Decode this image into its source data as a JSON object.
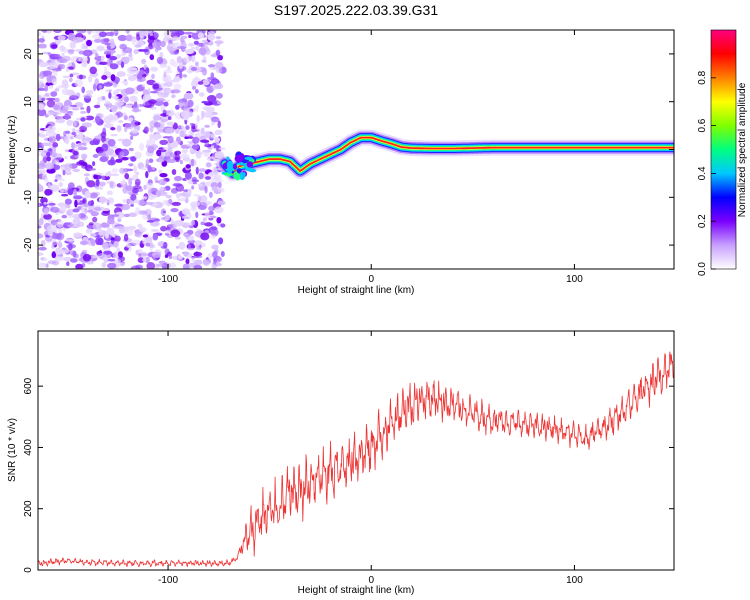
{
  "title": "S197.2025.222.03.39.G31",
  "chart_data": [
    {
      "type": "heatmap",
      "name": "spectrogram",
      "xlabel": "Height of straight line (km)",
      "ylabel": "Frequency (Hz)",
      "xlim": [
        -164,
        149
      ],
      "ylim": [
        -25,
        25
      ],
      "x_ticks": [
        -100,
        0,
        100
      ],
      "x_tick_labels": [
        "-100",
        "0",
        "100"
      ],
      "y_ticks": [
        20,
        10,
        0,
        -10,
        -20
      ],
      "y_tick_labels": [
        "20",
        "10",
        "0",
        "-10",
        "-20"
      ],
      "noise_region_x": [
        -164,
        -73
      ],
      "signal_trace": {
        "x": [
          -72,
          -68,
          -65,
          -60,
          -55,
          -50,
          -45,
          -40,
          -35,
          -30,
          -25,
          -20,
          -15,
          -10,
          -5,
          0,
          5,
          10,
          15,
          20,
          30,
          40,
          50,
          60,
          80,
          100,
          120,
          149
        ],
        "y": [
          -3.0,
          -5.0,
          -3.5,
          -3.0,
          -2.5,
          -2.0,
          -2.0,
          -2.5,
          -4.5,
          -3.0,
          -2.0,
          -1.0,
          0.0,
          1.5,
          2.5,
          2.5,
          1.8,
          1.2,
          0.5,
          0.3,
          0.2,
          0.2,
          0.3,
          0.4,
          0.4,
          0.4,
          0.4,
          0.4
        ]
      },
      "colorbar": {
        "label": "Normalized spectral amplitude",
        "range": [
          0,
          1
        ],
        "ticks": [
          0.0,
          0.2,
          0.4,
          0.6,
          0.8
        ],
        "tick_labels": [
          "0.0",
          "0.2",
          "0.4",
          "0.6",
          "0.8"
        ],
        "colors": [
          "#ffffff",
          "#c8a0ff",
          "#7a00ff",
          "#0000ff",
          "#00c8ff",
          "#00ff80",
          "#80ff00",
          "#ffff00",
          "#ff8000",
          "#ff0000",
          "#ff0080"
        ]
      }
    },
    {
      "type": "line",
      "name": "snr",
      "xlabel": "Height of straight line (km)",
      "ylabel": "SNR (10 * v/v)",
      "xlim": [
        -164,
        149
      ],
      "ylim": [
        0,
        780
      ],
      "x_ticks": [
        -100,
        0,
        100
      ],
      "x_tick_labels": [
        "-100",
        "0",
        "100"
      ],
      "y_ticks": [
        0,
        200,
        400,
        600
      ],
      "y_tick_labels": [
        "0",
        "200",
        "400",
        "600"
      ],
      "color": "#ee3333",
      "envelope": {
        "x": [
          -164,
          -150,
          -140,
          -120,
          -100,
          -80,
          -70,
          -66,
          -62,
          -58,
          -55,
          -50,
          -45,
          -40,
          -35,
          -30,
          -25,
          -20,
          -15,
          -10,
          -5,
          0,
          5,
          10,
          15,
          20,
          25,
          30,
          40,
          50,
          60,
          70,
          80,
          90,
          100,
          105,
          110,
          120,
          130,
          140,
          149
        ],
        "y": [
          22,
          30,
          25,
          22,
          22,
          22,
          22,
          40,
          100,
          130,
          170,
          190,
          210,
          250,
          260,
          280,
          300,
          320,
          330,
          360,
          380,
          400,
          440,
          480,
          520,
          540,
          560,
          560,
          540,
          510,
          490,
          480,
          470,
          460,
          440,
          430,
          450,
          490,
          560,
          620,
          680
        ]
      },
      "amplitude": {
        "x": [
          -164,
          -66,
          -60,
          -40,
          -20,
          0,
          20,
          40,
          60,
          80,
          100,
          120,
          149
        ],
        "y": [
          12,
          12,
          90,
          110,
          110,
          100,
          90,
          70,
          60,
          50,
          45,
          60,
          90
        ]
      }
    }
  ]
}
